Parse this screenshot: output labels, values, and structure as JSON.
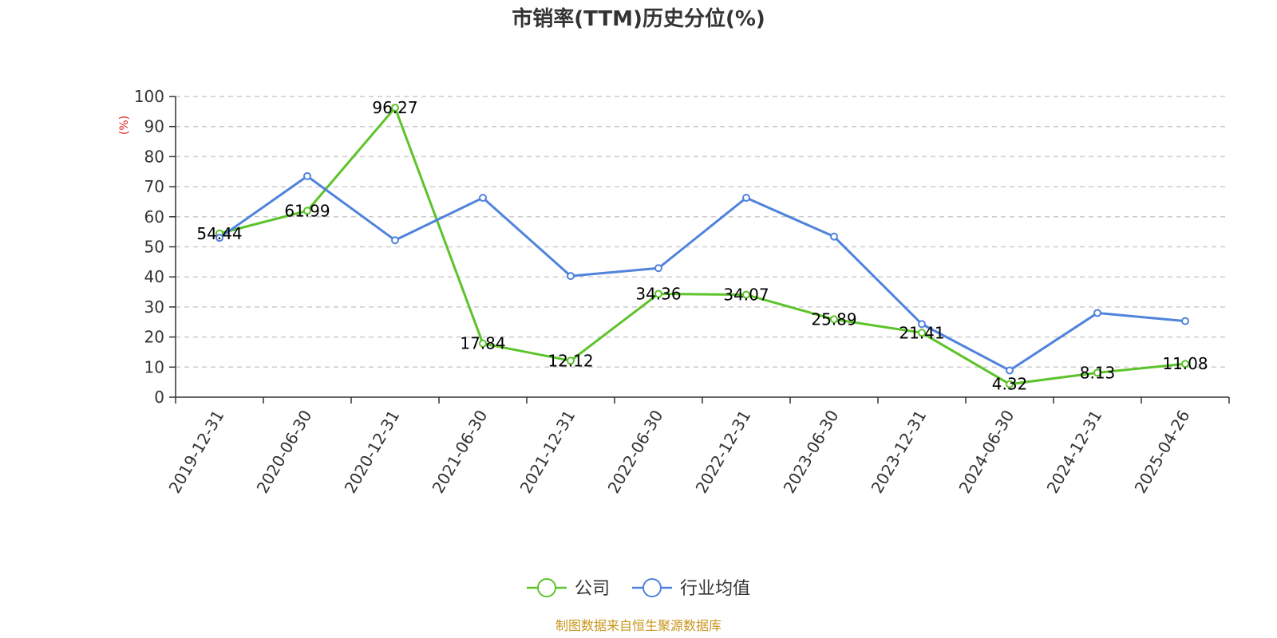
{
  "chart_data": {
    "type": "line",
    "title": "市销率(TTM)历史分位(%)",
    "ylabel": "(%)",
    "ylim": [
      0,
      100
    ],
    "yticks": [
      0,
      10,
      20,
      30,
      40,
      50,
      60,
      70,
      80,
      90,
      100
    ],
    "grid": true,
    "legend_position": "bottom-center",
    "categories": [
      "2019-12-31",
      "2020-06-30",
      "2020-12-31",
      "2021-06-30",
      "2021-12-31",
      "2022-06-30",
      "2022-12-31",
      "2023-06-30",
      "2023-12-31",
      "2024-06-30",
      "2024-12-31",
      "2025-04-26"
    ],
    "series": [
      {
        "name": "公司",
        "color": "#5cc32a",
        "values": [
          54.44,
          61.99,
          96.27,
          17.84,
          12.12,
          34.36,
          34.07,
          25.89,
          21.41,
          4.32,
          8.13,
          11.08
        ],
        "show_labels": true
      },
      {
        "name": "行业均值",
        "color": "#4f83dc",
        "values": [
          53.0,
          73.5,
          52.2,
          66.3,
          40.3,
          42.9,
          66.3,
          53.4,
          24.3,
          8.9,
          28.0,
          25.3
        ],
        "show_labels": false
      }
    ],
    "source": "制图数据来自恒生聚源数据库",
    "unit_color": "#e02020",
    "source_color": "#c8961e"
  }
}
